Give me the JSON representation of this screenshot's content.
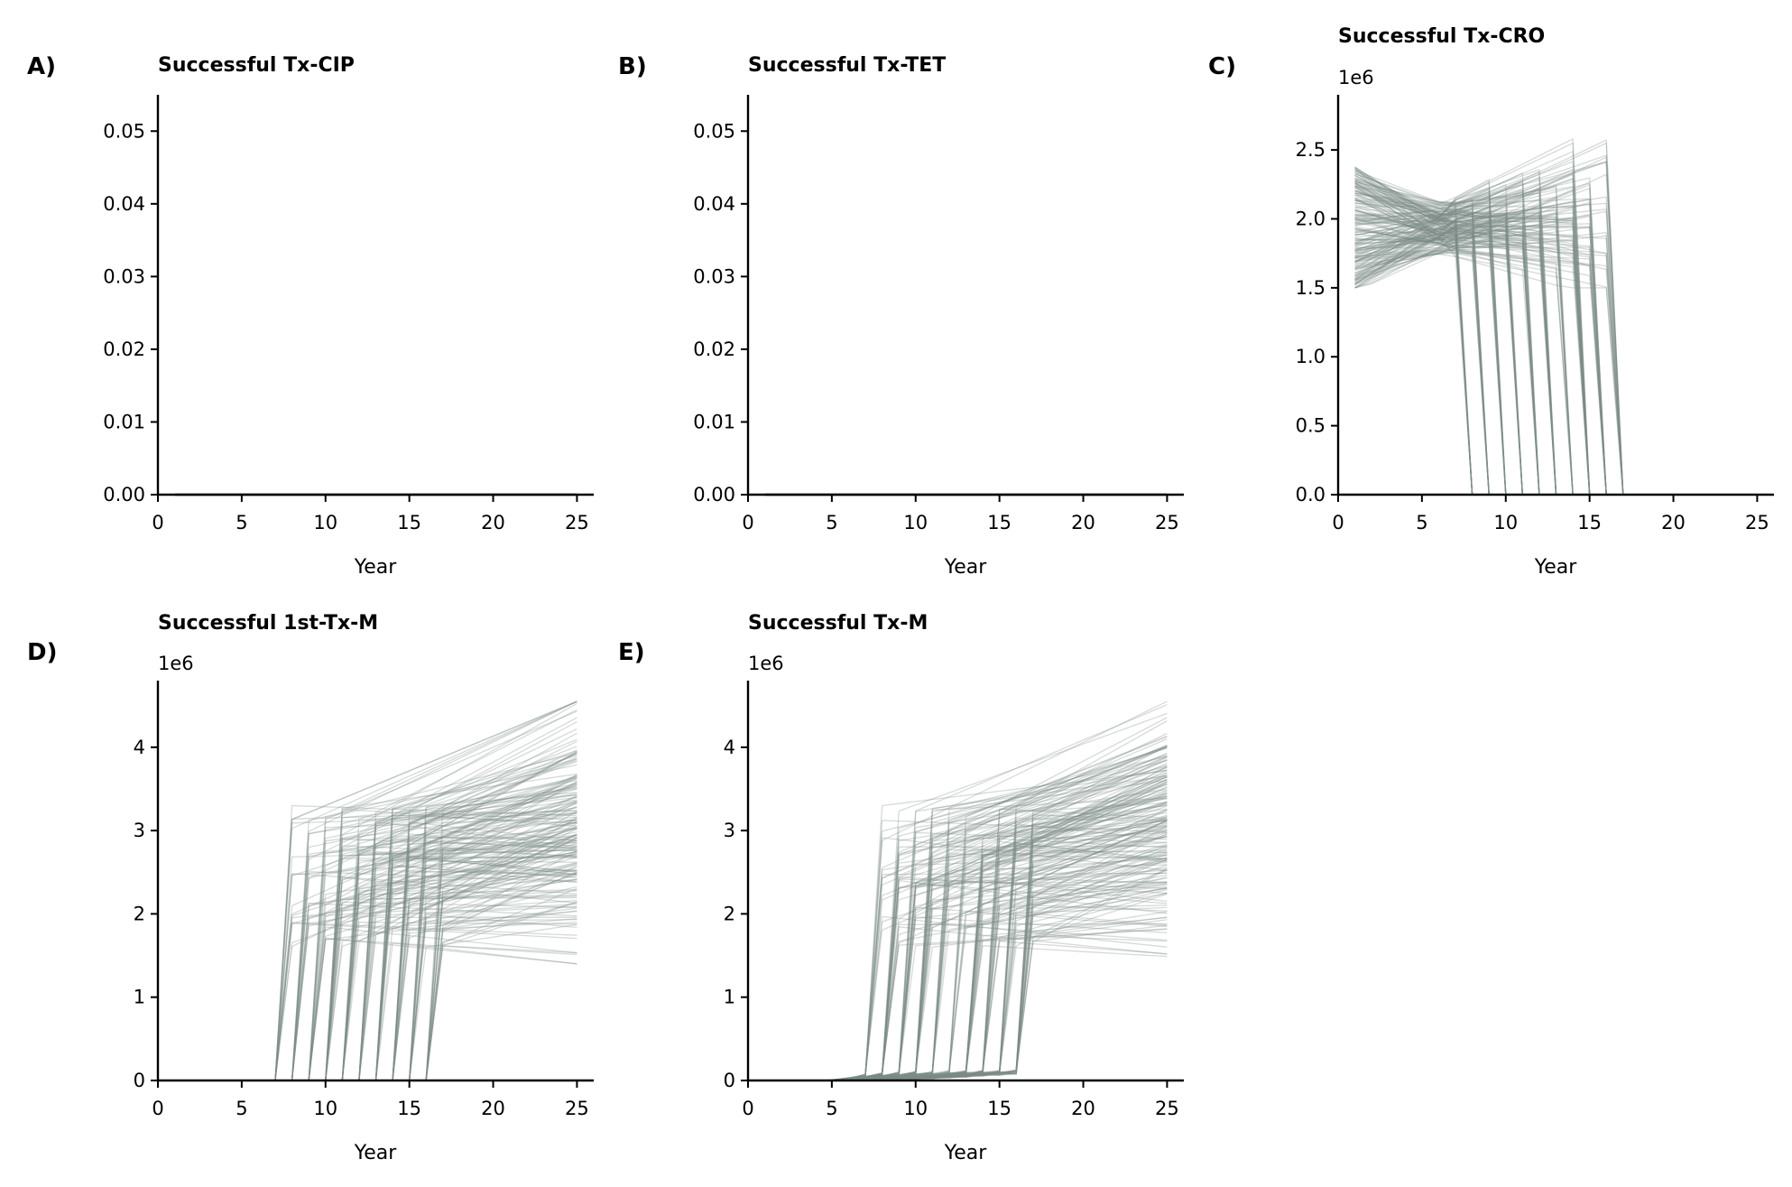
{
  "chart_data": [
    {
      "type": "line",
      "letter": "A)",
      "title": "Successful Tx-CIP",
      "xlabel": "Year",
      "ylabel": "",
      "offset_label": "",
      "xlim": [
        0,
        26
      ],
      "ylim": [
        0,
        0.055
      ],
      "xticks": [
        0,
        5,
        10,
        15,
        20,
        25
      ],
      "yticks": [
        0,
        0.01,
        0.02,
        0.03,
        0.04,
        0.05
      ],
      "ytick_labels": [
        "0.00",
        "0.01",
        "0.02",
        "0.03",
        "0.04",
        "0.05"
      ],
      "grid": false,
      "legend": "none",
      "line_color": "#7d8b85",
      "pattern": "zero",
      "n_runs": 1,
      "summary": {
        "x_range": [
          1,
          25
        ],
        "value": 0
      }
    },
    {
      "type": "line",
      "letter": "B)",
      "title": "Successful Tx-TET",
      "xlabel": "Year",
      "ylabel": "",
      "offset_label": "",
      "xlim": [
        0,
        26
      ],
      "ylim": [
        0,
        0.055
      ],
      "xticks": [
        0,
        5,
        10,
        15,
        20,
        25
      ],
      "yticks": [
        0,
        0.01,
        0.02,
        0.03,
        0.04,
        0.05
      ],
      "ytick_labels": [
        "0.00",
        "0.01",
        "0.02",
        "0.03",
        "0.04",
        "0.05"
      ],
      "grid": false,
      "legend": "none",
      "line_color": "#7d8b85",
      "pattern": "zero",
      "n_runs": 1,
      "summary": {
        "x_range": [
          1,
          25
        ],
        "value": 0
      }
    },
    {
      "type": "line",
      "letter": "C)",
      "title": "Successful Tx-CRO",
      "xlabel": "Year",
      "ylabel": "",
      "offset_label": "1e6",
      "scale": 1000000,
      "xlim": [
        0,
        26
      ],
      "ylim": [
        0,
        2.9
      ],
      "xticks": [
        0,
        5,
        10,
        15,
        20,
        25
      ],
      "yticks": [
        0,
        0.5,
        1.0,
        1.5,
        2.0,
        2.5
      ],
      "ytick_labels": [
        "0.0",
        "0.5",
        "1.0",
        "1.5",
        "2.0",
        "2.5"
      ],
      "grid": false,
      "legend": "none",
      "line_color": "#7d8b85",
      "pattern": "decline_then_drop",
      "n_runs": 200,
      "summary": {
        "start_year": 1,
        "start_range": [
          1.45,
          2.4
        ],
        "switch_year_range": [
          8,
          17
        ],
        "pre_switch_range": [
          1.5,
          2.75
        ],
        "post_switch_value": 0,
        "end_year": 25
      }
    },
    {
      "type": "line",
      "letter": "D)",
      "title": "Successful 1st-Tx-M",
      "xlabel": "Year",
      "ylabel": "",
      "offset_label": "1e6",
      "scale": 1000000,
      "xlim": [
        0,
        26
      ],
      "ylim": [
        0,
        4.8
      ],
      "xticks": [
        0,
        5,
        10,
        15,
        20,
        25
      ],
      "yticks": [
        0,
        1,
        2,
        3,
        4
      ],
      "ytick_labels": [
        "0",
        "1",
        "2",
        "3",
        "4"
      ],
      "grid": false,
      "legend": "none",
      "line_color": "#7d8b85",
      "pattern": "zero_then_rise",
      "n_runs": 200,
      "summary": {
        "start_year": 1,
        "pre_switch_value": 0,
        "switch_year_range": [
          8,
          17
        ],
        "jump_range": [
          1.6,
          3.3
        ],
        "end_year": 25,
        "end_range": [
          1.4,
          4.55
        ]
      }
    },
    {
      "type": "line",
      "letter": "E)",
      "title": "Successful Tx-M",
      "xlabel": "Year",
      "ylabel": "",
      "offset_label": "1e6",
      "scale": 1000000,
      "xlim": [
        0,
        26
      ],
      "ylim": [
        0,
        4.8
      ],
      "xticks": [
        0,
        5,
        10,
        15,
        20,
        25
      ],
      "yticks": [
        0,
        1,
        2,
        3,
        4
      ],
      "ytick_labels": [
        "0",
        "1",
        "2",
        "3",
        "4"
      ],
      "grid": false,
      "legend": "none",
      "line_color": "#7d8b85",
      "pattern": "creep_then_rise",
      "n_runs": 200,
      "summary": {
        "start_year": 1,
        "pre_switch_creep_max": 0.15,
        "switch_year_range": [
          8,
          17
        ],
        "jump_range": [
          1.6,
          3.3
        ],
        "end_year": 25,
        "end_range": [
          1.4,
          4.55
        ]
      }
    }
  ]
}
